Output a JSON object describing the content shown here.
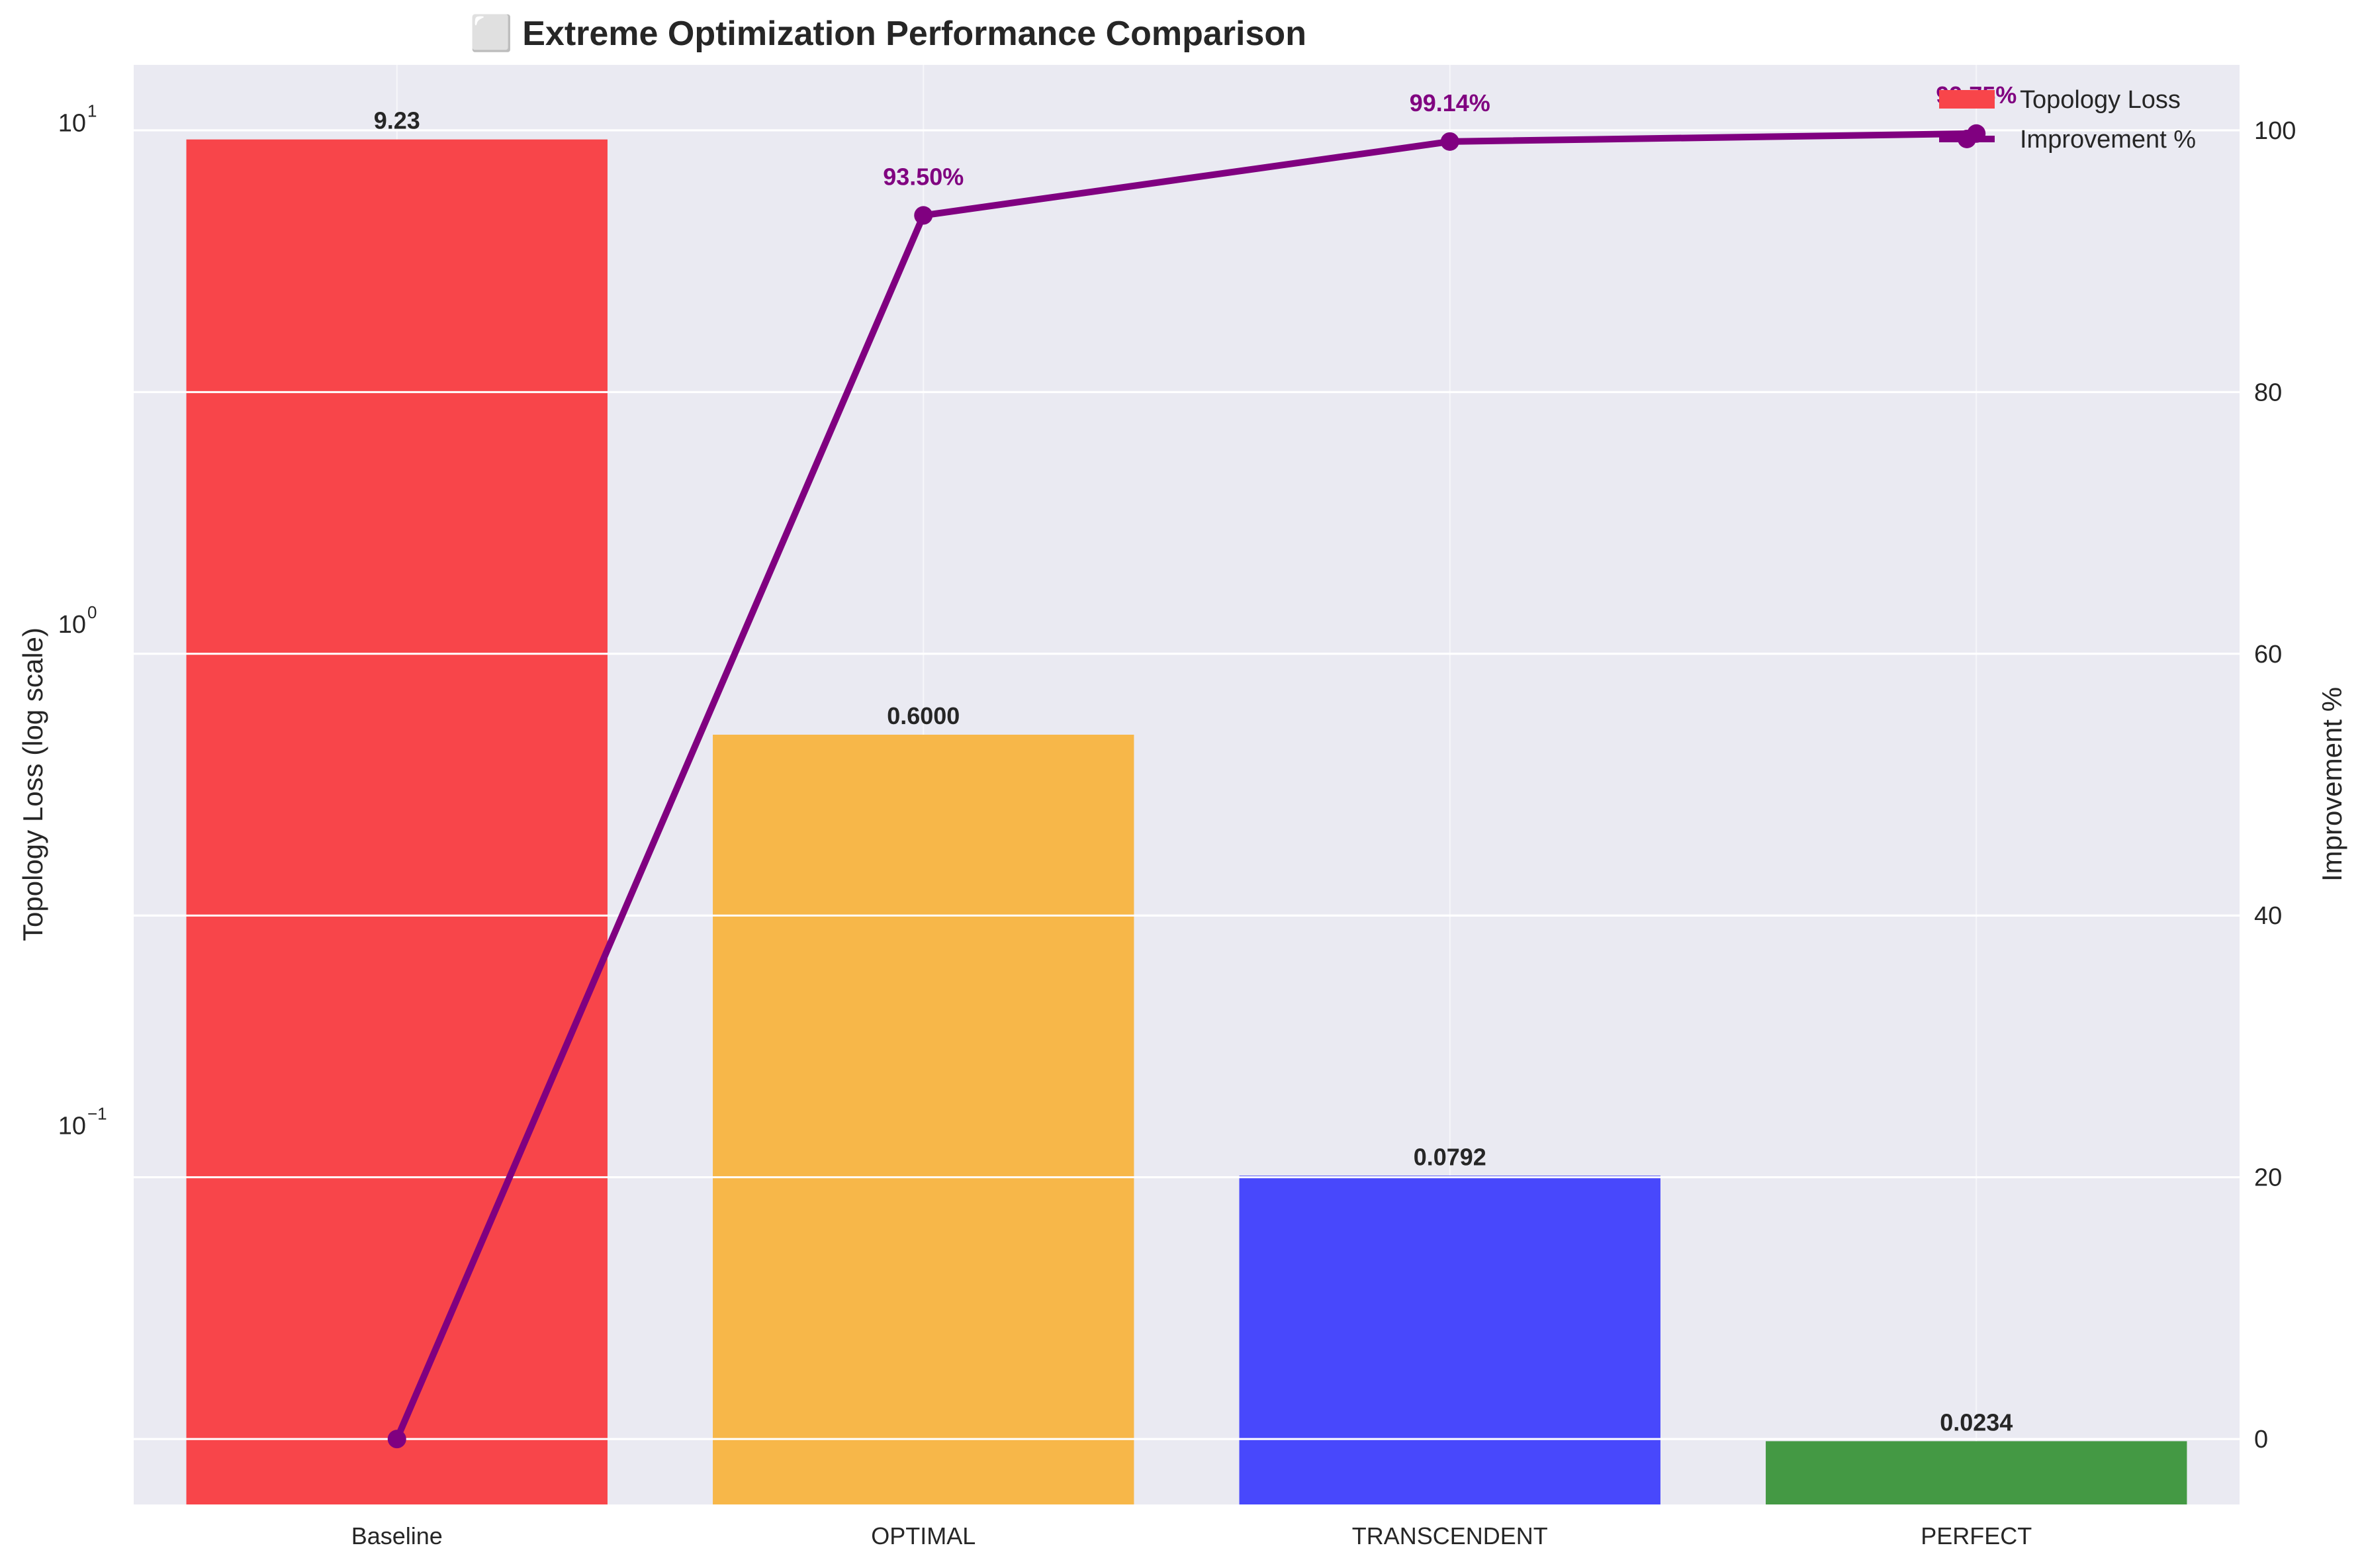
{
  "chart_data": {
    "type": "bar",
    "title": "⬜ Extreme Optimization Performance Comparison",
    "categories": [
      "Baseline",
      "OPTIMAL",
      "TRANSCENDENT",
      "PERFECT"
    ],
    "series": [
      {
        "name": "Topology Loss",
        "type": "bar",
        "axis": "left",
        "values": [
          9.23,
          0.6,
          0.0792,
          0.0234
        ],
        "labels": [
          "9.23",
          "0.6000",
          "0.0792",
          "0.0234"
        ],
        "colors": [
          "#f8454a",
          "#f7b749",
          "#4848fc",
          "#449944"
        ]
      },
      {
        "name": "Improvement %",
        "type": "line",
        "axis": "right",
        "values": [
          0,
          93.5,
          99.14,
          99.75
        ],
        "labels": [
          "",
          "93.50%",
          "99.14%",
          "99.75%"
        ],
        "color": "#800080"
      }
    ],
    "y_left": {
      "label": "Topology Loss (log scale)",
      "scale": "log",
      "lim": [
        0.0175,
        13
      ],
      "ticks": [
        {
          "value": 0.1,
          "base": "10",
          "exp": "−1"
        },
        {
          "value": 1,
          "base": "10",
          "exp": "0"
        },
        {
          "value": 10,
          "base": "10",
          "exp": "1"
        }
      ]
    },
    "y_right": {
      "label": "Improvement %",
      "scale": "linear",
      "lim": [
        -5,
        105
      ],
      "ticks": [
        0,
        20,
        40,
        60,
        80,
        100
      ]
    },
    "grid": true,
    "legend": {
      "position": "top-right",
      "entries": [
        "Topology Loss",
        "Improvement %"
      ]
    },
    "colors": {
      "plot_bg": "#eaeaf2",
      "grid": "#ffffff",
      "text": "#262626",
      "annotation": "#800080"
    }
  }
}
